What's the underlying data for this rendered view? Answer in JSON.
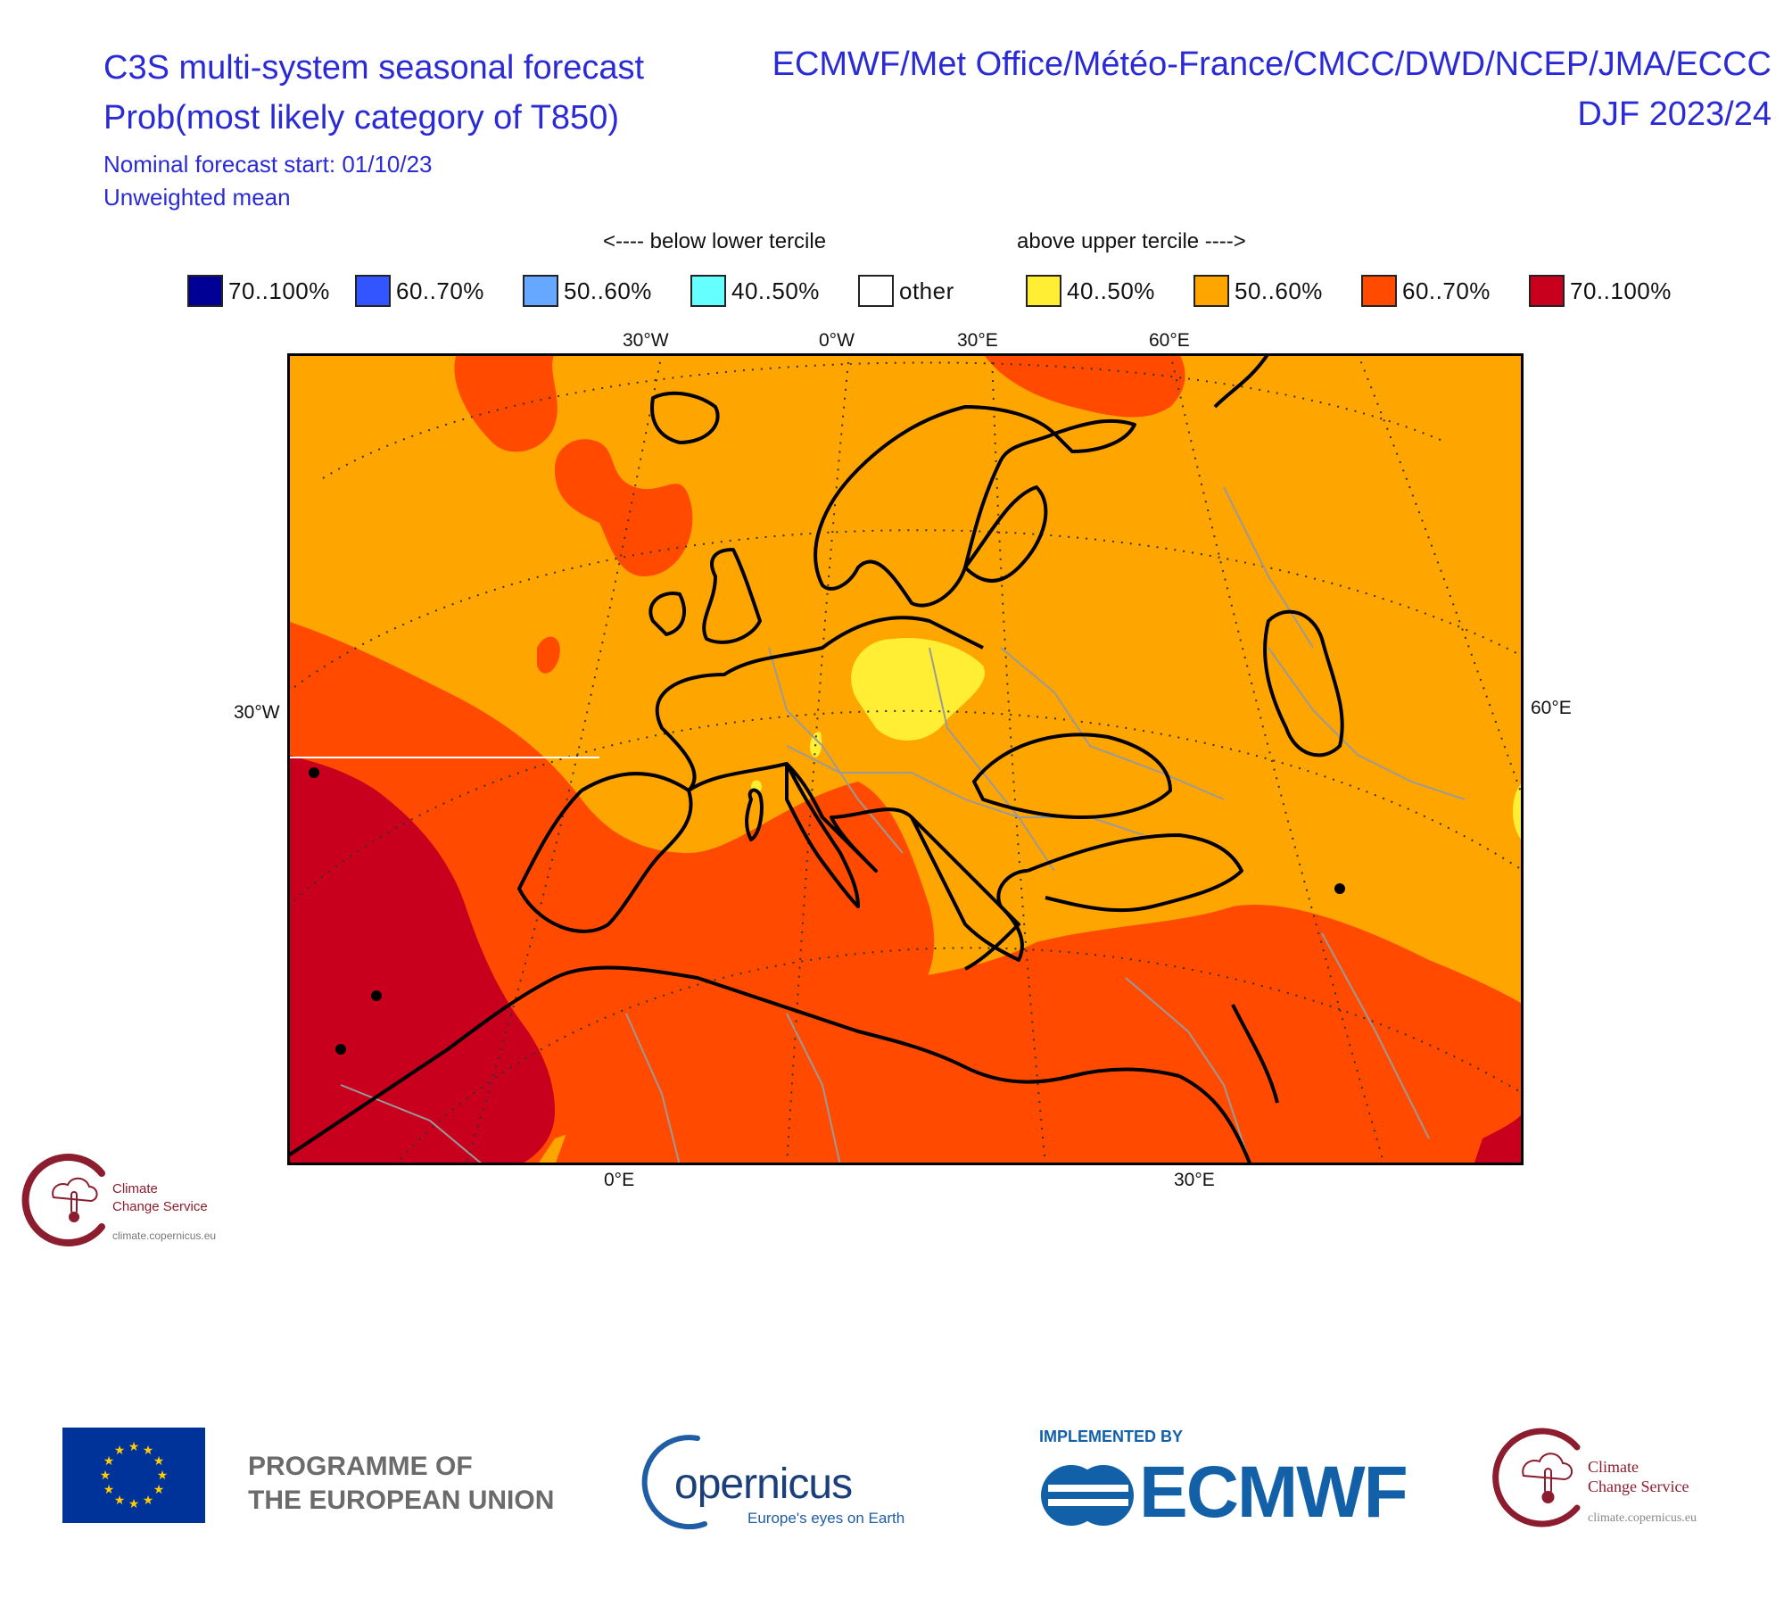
{
  "header": {
    "title_line1": "C3S multi-system seasonal forecast",
    "title_line2": "Prob(most likely category of T850)",
    "forecast_start": "Nominal forecast start: 01/10/23",
    "weighting": "Unweighted mean",
    "systems": "ECMWF/Met Office/Météo-France/CMCC/DWD/NCEP/JMA/ECCC",
    "period": "DJF 2023/24"
  },
  "legend": {
    "below_label": "<---- below lower tercile",
    "above_label": "above upper tercile ---->",
    "items": [
      {
        "label": "70..100%",
        "color": "#000096"
      },
      {
        "label": "60..70%",
        "color": "#3355ff"
      },
      {
        "label": "50..60%",
        "color": "#66a8ff"
      },
      {
        "label": "40..50%",
        "color": "#66ffff"
      },
      {
        "label": "other",
        "color": "#ffffff"
      },
      {
        "label": "40..50%",
        "color": "#ffee33"
      },
      {
        "label": "50..60%",
        "color": "#ffa500"
      },
      {
        "label": "60..70%",
        "color": "#ff4a00"
      },
      {
        "label": "70..100%",
        "color": "#c8001e"
      }
    ]
  },
  "axes": {
    "top": [
      "30°W",
      "0°W",
      "30°E",
      "60°E"
    ],
    "left": "30°W",
    "right": "60°E",
    "bottom": [
      "0°E",
      "30°E"
    ]
  },
  "colors": {
    "c50_60": "#ffa500",
    "c60_70": "#ff4a00",
    "c70_100": "#c8001e",
    "c40_50": "#ffee33"
  },
  "logos": {
    "c3s_small_line1": "Climate",
    "c3s_small_line2": "Change Service",
    "c3s_small_url": "climate.copernicus.eu",
    "eu_programme_line1": "PROGRAMME OF",
    "eu_programme_line2": "THE EUROPEAN UNION",
    "copernicus_name": "opernicus",
    "copernicus_tagline": "Europe's eyes on Earth",
    "implemented_by": "IMPLEMENTED BY",
    "ecmwf": "ECMWF",
    "c3s_line1": "Climate",
    "c3s_line2": "Change Service",
    "c3s_url": "climate.copernicus.eu"
  }
}
